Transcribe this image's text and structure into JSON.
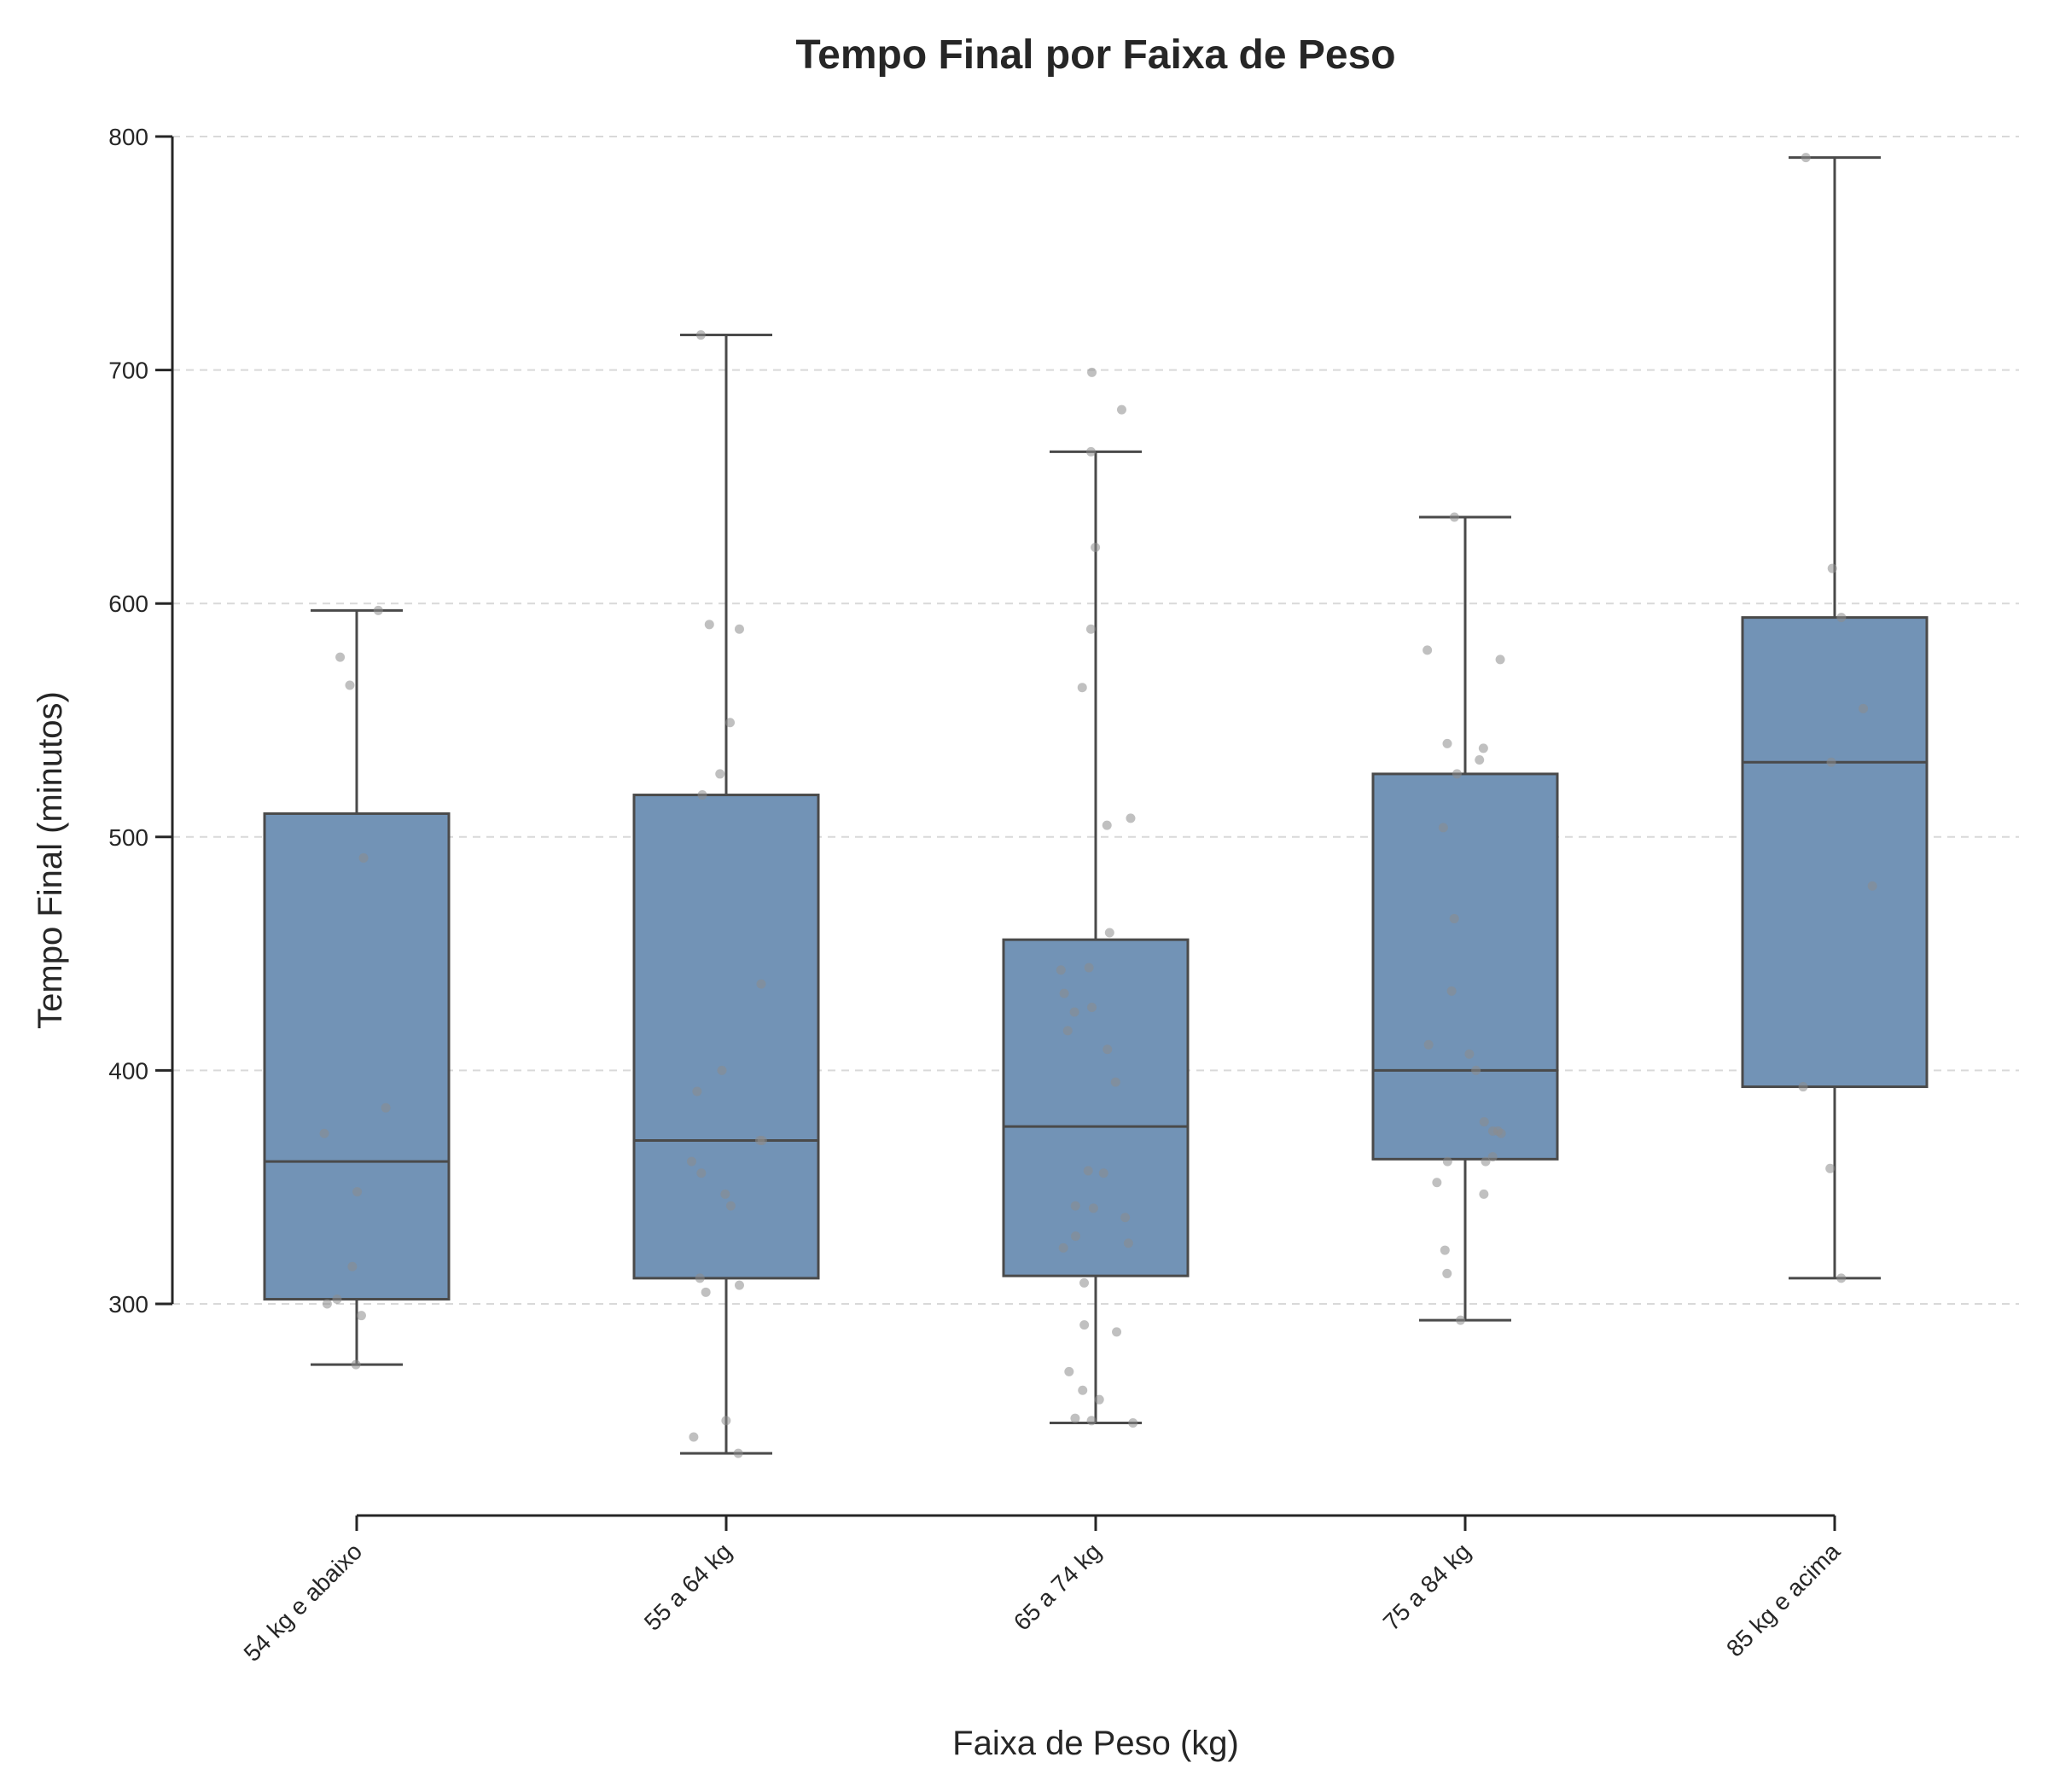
{
  "chart_data": {
    "type": "box",
    "title": "Tempo Final por Faixa de Peso",
    "xlabel": "Faixa de Peso (kg)",
    "ylabel": "Tempo Final (minutos)",
    "ylim": [
      210,
      810
    ],
    "yticks": [
      300,
      400,
      500,
      600,
      700,
      800
    ],
    "grid": "y-dashed",
    "box_color": "#7293b6",
    "line_color": "#4a4a4a",
    "point_color": "#8c8c8c",
    "categories": [
      "54 kg e abaixo",
      "55 a 64 kg",
      "65 a 74 kg",
      "75 a 84 kg",
      "85 kg e acima"
    ],
    "boxes": [
      {
        "category": "54 kg e abaixo",
        "whisker_low": 274,
        "q1": 302,
        "median": 361,
        "q3": 510,
        "whisker_high": 597
      },
      {
        "category": "55 a 64 kg",
        "whisker_low": 236,
        "q1": 311,
        "median": 370,
        "q3": 518,
        "whisker_high": 715
      },
      {
        "category": "65 a 74 kg",
        "whisker_low": 249,
        "q1": 312,
        "median": 376,
        "q3": 456,
        "whisker_high": 665
      },
      {
        "category": "75 a 84 kg",
        "whisker_low": 293,
        "q1": 362,
        "median": 400,
        "q3": 527,
        "whisker_high": 637
      },
      {
        "category": "85 kg e acima",
        "whisker_low": 311,
        "q1": 393,
        "median": 532,
        "q3": 594,
        "whisker_high": 791
      }
    ],
    "points": [
      [
        274,
        295,
        300,
        302,
        316,
        348,
        373,
        384,
        491,
        565,
        577,
        597
      ],
      [
        236,
        243,
        250,
        305,
        308,
        311,
        342,
        347,
        356,
        361,
        370,
        370,
        391,
        400,
        437,
        518,
        527,
        549,
        589,
        591,
        715
      ],
      [
        249,
        250,
        251,
        259,
        263,
        271,
        288,
        291,
        309,
        324,
        326,
        329,
        337,
        341,
        342,
        356,
        357,
        395,
        409,
        417,
        425,
        427,
        433,
        443,
        444,
        459,
        505,
        508,
        564,
        589,
        624,
        665,
        683,
        699
      ],
      [
        293,
        313,
        323,
        347,
        352,
        361,
        361,
        363,
        373,
        374,
        374,
        378,
        400,
        407,
        411,
        434,
        465,
        504,
        527,
        533,
        538,
        540,
        576,
        580,
        637
      ],
      [
        311,
        358,
        393,
        479,
        532,
        555,
        594,
        615,
        791
      ]
    ]
  }
}
